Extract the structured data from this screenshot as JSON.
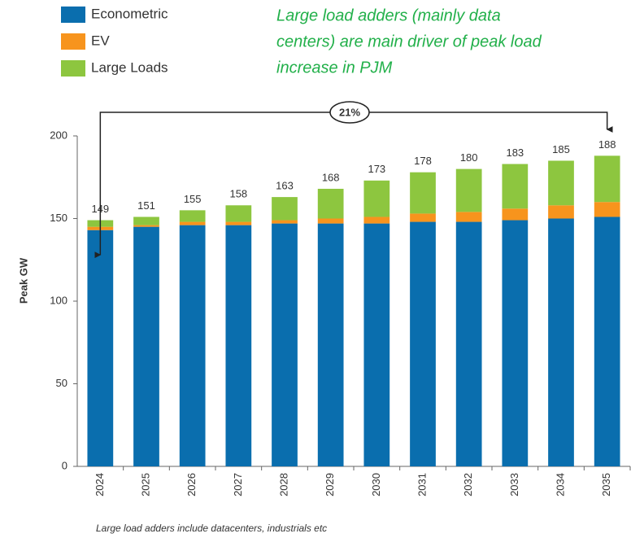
{
  "chart_data": {
    "type": "stacked_bar",
    "annotation": "Large load adders (mainly data centers) are main driver of peak load increase in PJM",
    "annotation_lines": [
      "Large load adders (mainly data",
      "centers) are main driver of peak load",
      "increase in PJM"
    ],
    "growth_label": "21%",
    "footnote": "Large load adders include datacenters, industrials etc",
    "ylabel": "Peak GW",
    "categories": [
      "2024",
      "2025",
      "2026",
      "2027",
      "2028",
      "2029",
      "2030",
      "2031",
      "2032",
      "2033",
      "2034",
      "2035"
    ],
    "series": [
      {
        "name": "Econometric",
        "color": "#0a6eae",
        "values": [
          143,
          145,
          146,
          146,
          147,
          147,
          147,
          148,
          148,
          149,
          150,
          151
        ]
      },
      {
        "name": "EV",
        "color": "#f7941d",
        "values": [
          2,
          1,
          2,
          2,
          2,
          3,
          4,
          5,
          6,
          7,
          8,
          9
        ]
      },
      {
        "name": "Large Loads",
        "color": "#8dc63f",
        "values": [
          4,
          5,
          7,
          10,
          14,
          18,
          22,
          25,
          26,
          27,
          27,
          28
        ]
      }
    ],
    "totals": [
      149,
      151,
      155,
      158,
      163,
      168,
      173,
      178,
      180,
      183,
      185,
      188
    ],
    "ylim": [
      0,
      200
    ],
    "yticks": [
      0,
      50,
      100,
      150,
      200
    ],
    "grid": false
  }
}
